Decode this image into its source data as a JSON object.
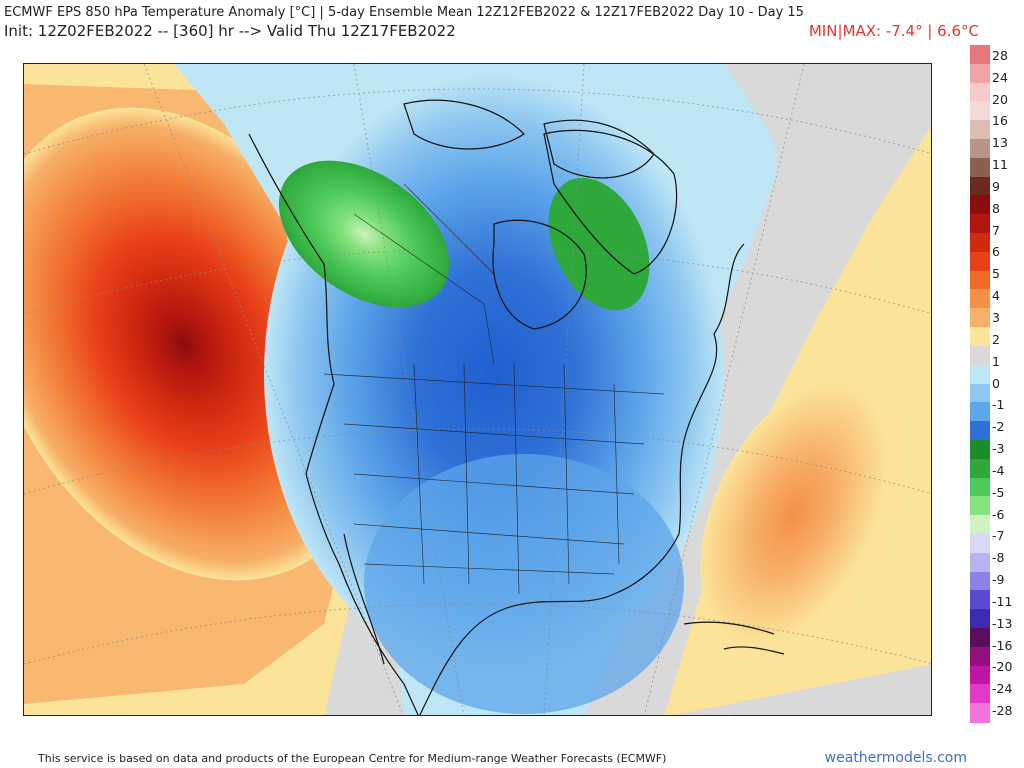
{
  "header": {
    "line1": "ECMWF EPS 850 hPa Temperature Anomaly [°C] | 5-day Ensemble Mean 12Z12FEB2022 & 12Z17FEB2022   Day 10 - Day 15",
    "line2": "Init: 12Z02FEB2022 -- [360] hr --> Valid Thu 12Z17FEB2022",
    "minmax": "MIN|MAX: -7.4° | 6.6°C"
  },
  "colorbar": {
    "labels": [
      "28",
      "24",
      "20",
      "16",
      "13",
      "11",
      "9",
      "8",
      "7",
      "6",
      "5",
      "4",
      "3",
      "2",
      "1",
      "0",
      "-1",
      "-2",
      "-3",
      "-4",
      "-5",
      "-6",
      "-7",
      "-8",
      "-9",
      "-11",
      "-13",
      "-16",
      "-20",
      "-24",
      "-28"
    ],
    "colors": [
      "#e8767a",
      "#f1a3a5",
      "#f7c9c9",
      "#f4dad6",
      "#dcbdb5",
      "#b99488",
      "#8a6050",
      "#6a2b1c",
      "#8c0d0d",
      "#b3160e",
      "#d02a10",
      "#e8401a",
      "#f06a2a",
      "#f48f47",
      "#f7b068",
      "#fbe49a",
      "#d9d9d9",
      "#bfe6f5",
      "#8ec7f0",
      "#5ea6ea",
      "#2f71d6",
      "#1a8c2a",
      "#2ea83a",
      "#4cc95a",
      "#85e27c",
      "#d0f1c2",
      "#d8d8f4",
      "#b8b4f1",
      "#8b82e6",
      "#5a4ad2",
      "#3c2cae",
      "#5b0d5e",
      "#93107e",
      "#c015a9",
      "#e13acb",
      "#f375dc"
    ]
  },
  "footer": {
    "disclaimer": "This service is based on data and products of the European Centre for Medium-range Weather Forecasts (ECMWF)",
    "brand": "weathermodels.com"
  }
}
